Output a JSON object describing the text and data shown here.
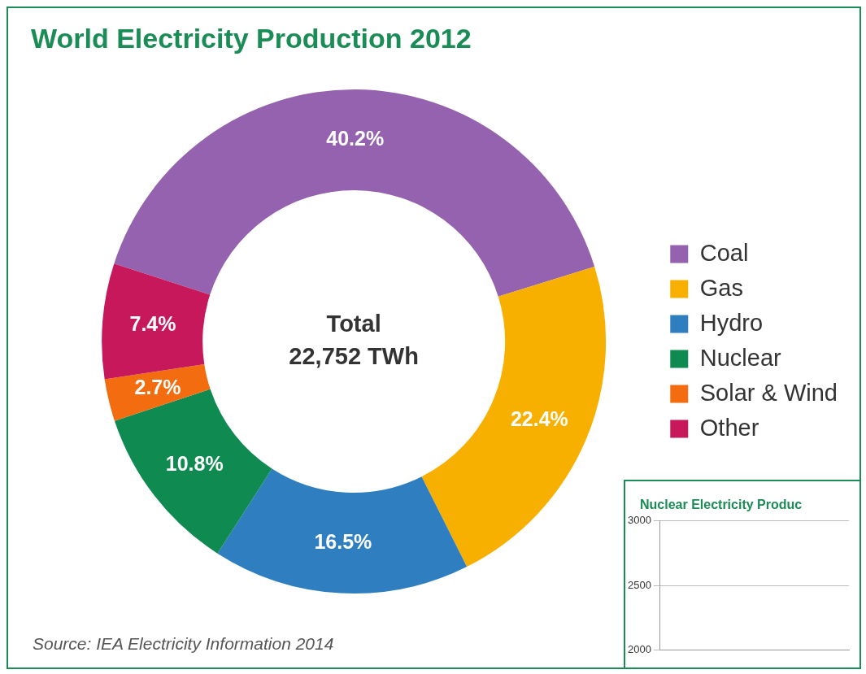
{
  "chart_data": [
    {
      "type": "donut",
      "title": "World Electricity Production 2012",
      "categories": [
        "Coal",
        "Gas",
        "Hydro",
        "Nuclear",
        "Solar & Wind",
        "Other"
      ],
      "values": [
        40.2,
        22.4,
        16.5,
        10.8,
        2.7,
        7.4
      ],
      "colors": [
        "#9462ae",
        "#f8b000",
        "#2f7fc0",
        "#0f8a50",
        "#f36c10",
        "#c6185a"
      ],
      "value_labels": [
        "40.2%",
        "22.4%",
        "16.5%",
        "10.8%",
        "2.7%",
        "7.4%"
      ],
      "legend": "right",
      "annotations": [
        "Total",
        "22,752 TWh",
        "Source: IEA Electricity Information 2014"
      ]
    },
    {
      "type": "line",
      "title": "Nuclear Electricity Produc",
      "categories": [
        null
      ],
      "values": [
        null
      ],
      "ylim": [
        2000,
        3000
      ],
      "yticks": [
        2000,
        2500,
        3000
      ],
      "grid": "y",
      "tick_labels": "y"
    }
  ]
}
